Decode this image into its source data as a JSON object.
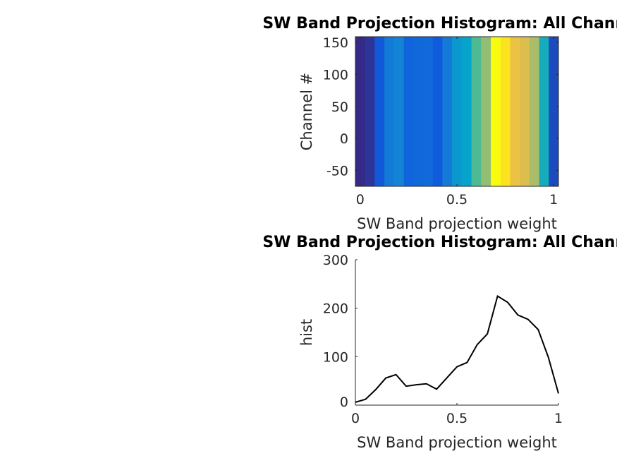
{
  "chart_data": [
    {
      "type": "heatmap",
      "title": "SW Band Projection Histogram: All Channels",
      "xlabel": "SW Band projection weight",
      "ylabel": "Channel #",
      "x": [
        0,
        0.05,
        0.1,
        0.15,
        0.2,
        0.25,
        0.3,
        0.35,
        0.4,
        0.45,
        0.5,
        0.55,
        0.6,
        0.65,
        0.7,
        0.75,
        0.8,
        0.85,
        0.9,
        0.95,
        1
      ],
      "values": [
        6,
        12,
        32,
        56,
        63,
        39,
        42,
        44,
        33,
        56,
        79,
        88,
        125,
        147,
        225,
        212,
        186,
        177,
        156,
        99,
        24
      ],
      "xlim": [
        -0.025,
        1.025
      ],
      "ylim": [
        -75,
        159
      ],
      "xticks": [
        "0",
        "0.5",
        "1"
      ],
      "xtick_values": [
        0,
        0.5,
        1
      ],
      "yticks": [
        "-50",
        "0",
        "50",
        "100",
        "150"
      ],
      "ytick_values": [
        -50,
        0,
        50,
        100,
        150
      ],
      "colormap": "parula"
    },
    {
      "type": "line",
      "title": "SW Band Projection Histogram: All Channels",
      "xlabel": "SW Band projection weight",
      "ylabel": "hist",
      "x": [
        0,
        0.05,
        0.1,
        0.15,
        0.2,
        0.25,
        0.3,
        0.35,
        0.4,
        0.45,
        0.5,
        0.55,
        0.6,
        0.65,
        0.7,
        0.75,
        0.8,
        0.85,
        0.9,
        0.95,
        1
      ],
      "values": [
        6,
        12,
        32,
        56,
        63,
        39,
        42,
        44,
        33,
        56,
        79,
        88,
        125,
        147,
        225,
        212,
        186,
        177,
        156,
        99,
        24
      ],
      "xlim": [
        0,
        1
      ],
      "ylim": [
        0,
        300
      ],
      "xticks": [
        "0",
        "0.5",
        "1"
      ],
      "xtick_values": [
        0,
        0.5,
        1
      ],
      "yticks": [
        "0",
        "100",
        "200",
        "300"
      ],
      "ytick_values": [
        0,
        100,
        200,
        300
      ],
      "line_color": "#000000",
      "grid": false
    }
  ]
}
